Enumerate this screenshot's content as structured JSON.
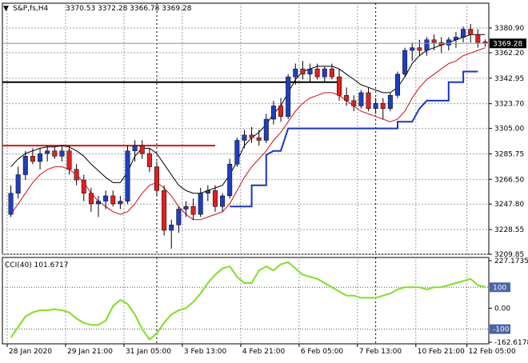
{
  "header": {
    "symbol": "S&P,fs,H4",
    "ohlc": "3370.53 3372.28 3366.78 3369.28"
  },
  "colors": {
    "bull_body": "#1f3fbf",
    "bear_body": "#e02020",
    "wick": "#000000",
    "upper_band": "#000000",
    "lower_band": "#cc1111",
    "trail_stop": "#1a33cc",
    "resistance_red": "#e01010",
    "cci_line": "#80e020",
    "grid": "#a0a0a0",
    "price_box_bg": "#000000",
    "price_box_fg": "#ffffff"
  },
  "chart_data": [
    {
      "type": "candlestick",
      "name": "price",
      "ylim": [
        3209.85,
        3390
      ],
      "y_ticks": [
        {
          "v": 3380.9,
          "label": "3380.90"
        },
        {
          "v": 3362.2,
          "label": "3362.20"
        },
        {
          "v": 3342.95,
          "label": "3342.95"
        },
        {
          "v": 3323.7,
          "label": "3323.70"
        },
        {
          "v": 3305.0,
          "label": "3305.00"
        },
        {
          "v": 3285.75,
          "label": "3285.75"
        },
        {
          "v": 3266.5,
          "label": "3266.50"
        },
        {
          "v": 3247.8,
          "label": "3247.80"
        },
        {
          "v": 3228.55,
          "label": "3228.55"
        },
        {
          "v": 3209.85,
          "label": "3209.85"
        }
      ],
      "current_price": {
        "v": 3369.28,
        "label": "3369.28"
      },
      "candles": [
        [
          3240,
          3262,
          3238,
          3256
        ],
        [
          3256,
          3276,
          3252,
          3270
        ],
        [
          3270,
          3288,
          3266,
          3284
        ],
        [
          3284,
          3290,
          3278,
          3280
        ],
        [
          3280,
          3290,
          3274,
          3286
        ],
        [
          3286,
          3292,
          3280,
          3288
        ],
        [
          3288,
          3291,
          3282,
          3284
        ],
        [
          3284,
          3292,
          3280,
          3288
        ],
        [
          3288,
          3292,
          3270,
          3274
        ],
        [
          3274,
          3278,
          3262,
          3266
        ],
        [
          3266,
          3270,
          3250,
          3256
        ],
        [
          3256,
          3260,
          3242,
          3248
        ],
        [
          3248,
          3254,
          3238,
          3250
        ],
        [
          3250,
          3258,
          3244,
          3254
        ],
        [
          3254,
          3258,
          3246,
          3248
        ],
        [
          3248,
          3254,
          3244,
          3250
        ],
        [
          3250,
          3292,
          3248,
          3288
        ],
        [
          3288,
          3296,
          3280,
          3292
        ],
        [
          3292,
          3296,
          3282,
          3286
        ],
        [
          3286,
          3290,
          3272,
          3276
        ],
        [
          3276,
          3280,
          3254,
          3258
        ],
        [
          3258,
          3262,
          3224,
          3228
        ],
        [
          3228,
          3236,
          3214,
          3232
        ],
        [
          3232,
          3246,
          3226,
          3244
        ],
        [
          3244,
          3250,
          3238,
          3246
        ],
        [
          3246,
          3252,
          3236,
          3240
        ],
        [
          3240,
          3260,
          3238,
          3256
        ],
        [
          3256,
          3262,
          3250,
          3258
        ],
        [
          3258,
          3262,
          3242,
          3246
        ],
        [
          3246,
          3256,
          3242,
          3254
        ],
        [
          3254,
          3282,
          3252,
          3278
        ],
        [
          3278,
          3298,
          3276,
          3296
        ],
        [
          3296,
          3304,
          3290,
          3300
        ],
        [
          3300,
          3306,
          3294,
          3298
        ],
        [
          3298,
          3304,
          3292,
          3296
        ],
        [
          3296,
          3316,
          3294,
          3312
        ],
        [
          3312,
          3326,
          3308,
          3322
        ],
        [
          3322,
          3328,
          3310,
          3314
        ],
        [
          3314,
          3346,
          3312,
          3344
        ],
        [
          3344,
          3354,
          3338,
          3350
        ],
        [
          3350,
          3356,
          3342,
          3346
        ],
        [
          3346,
          3354,
          3340,
          3350
        ],
        [
          3350,
          3354,
          3342,
          3344
        ],
        [
          3344,
          3352,
          3340,
          3350
        ],
        [
          3350,
          3354,
          3342,
          3344
        ],
        [
          3344,
          3350,
          3326,
          3330
        ],
        [
          3330,
          3336,
          3322,
          3326
        ],
        [
          3326,
          3330,
          3318,
          3322
        ],
        [
          3322,
          3334,
          3320,
          3332
        ],
        [
          3332,
          3336,
          3318,
          3320
        ],
        [
          3320,
          3328,
          3316,
          3324
        ],
        [
          3324,
          3328,
          3312,
          3320
        ],
        [
          3320,
          3332,
          3318,
          3330
        ],
        [
          3330,
          3348,
          3328,
          3346
        ],
        [
          3346,
          3366,
          3344,
          3364
        ],
        [
          3364,
          3370,
          3356,
          3366
        ],
        [
          3366,
          3372,
          3360,
          3364
        ],
        [
          3364,
          3374,
          3360,
          3372
        ],
        [
          3372,
          3376,
          3364,
          3370
        ],
        [
          3370,
          3374,
          3362,
          3368
        ],
        [
          3368,
          3374,
          3364,
          3372
        ],
        [
          3372,
          3378,
          3366,
          3374
        ],
        [
          3374,
          3382,
          3370,
          3380
        ],
        [
          3380,
          3384,
          3370,
          3376
        ],
        [
          3376,
          3380,
          3366,
          3370
        ],
        [
          3370.53,
          3372.28,
          3366.78,
          3369.28
        ]
      ],
      "upper_band": [
        3276,
        3282,
        3286,
        3288,
        3290,
        3291,
        3291,
        3292,
        3291,
        3288,
        3284,
        3278,
        3273,
        3268,
        3264,
        3264,
        3272,
        3284,
        3290,
        3290,
        3286,
        3278,
        3270,
        3262,
        3258,
        3256,
        3256,
        3258,
        3260,
        3262,
        3270,
        3280,
        3292,
        3298,
        3302,
        3308,
        3316,
        3322,
        3332,
        3342,
        3348,
        3350,
        3352,
        3352,
        3352,
        3350,
        3346,
        3342,
        3338,
        3336,
        3334,
        3332,
        3332,
        3336,
        3344,
        3354,
        3360,
        3364,
        3366,
        3368,
        3370,
        3372,
        3374,
        3376,
        3376,
        3376
      ],
      "lower_band": [
        3240,
        3248,
        3256,
        3264,
        3270,
        3274,
        3276,
        3276,
        3274,
        3270,
        3264,
        3256,
        3250,
        3246,
        3242,
        3240,
        3242,
        3248,
        3256,
        3262,
        3264,
        3260,
        3254,
        3246,
        3240,
        3236,
        3236,
        3238,
        3240,
        3242,
        3248,
        3258,
        3268,
        3276,
        3282,
        3288,
        3296,
        3302,
        3310,
        3318,
        3324,
        3328,
        3330,
        3332,
        3332,
        3330,
        3326,
        3322,
        3318,
        3316,
        3314,
        3312,
        3310,
        3312,
        3318,
        3328,
        3336,
        3342,
        3346,
        3350,
        3354,
        3356,
        3360,
        3362,
        3364,
        3366
      ],
      "trail_stop": [
        [
          30,
          3246
        ],
        [
          31,
          3246
        ],
        [
          32,
          3246
        ],
        [
          33,
          3246
        ],
        [
          33,
          3262
        ],
        [
          34,
          3262
        ],
        [
          35,
          3262
        ],
        [
          35,
          3285
        ],
        [
          36,
          3288
        ],
        [
          37,
          3288
        ],
        [
          38,
          3305
        ],
        [
          39,
          3305
        ],
        [
          52,
          3305
        ],
        [
          53,
          3305
        ],
        [
          53,
          3310
        ],
        [
          55,
          3310
        ],
        [
          56,
          3320
        ],
        [
          57,
          3326
        ],
        [
          60,
          3326
        ],
        [
          60,
          3340
        ],
        [
          61,
          3340
        ],
        [
          62,
          3340
        ],
        [
          62,
          3348
        ],
        [
          64,
          3348
        ]
      ],
      "resistance_lines": [
        {
          "level": 3292,
          "from": 0,
          "to": 28,
          "color": "red"
        },
        {
          "level": 3340,
          "from": 0,
          "to": 45,
          "color": "black"
        }
      ]
    },
    {
      "type": "line",
      "name": "cci",
      "label": "CCI(40) 101.6717",
      "ylim": [
        -162.6178,
        227.1735
      ],
      "y_ticks": [
        {
          "v": 227.1735,
          "label": "227.1735"
        },
        {
          "v": 100,
          "label": "100"
        },
        {
          "v": 0,
          "label": "0.00"
        },
        {
          "v": -100,
          "label": "-100"
        },
        {
          "v": -162.6178,
          "label": "-162.6178"
        }
      ],
      "values": [
        -140,
        -90,
        -40,
        -20,
        -10,
        -10,
        -5,
        -10,
        -20,
        -50,
        -70,
        -80,
        -80,
        -60,
        10,
        40,
        20,
        -30,
        -100,
        -150,
        -120,
        -70,
        -30,
        -10,
        0,
        30,
        70,
        120,
        160,
        190,
        200,
        150,
        120,
        120,
        180,
        200,
        180,
        210,
        220,
        190,
        160,
        150,
        140,
        120,
        100,
        80,
        60,
        60,
        50,
        50,
        50,
        60,
        70,
        90,
        100,
        100,
        100,
        90,
        100,
        100,
        110,
        120,
        130,
        140,
        110,
        101.6717
      ]
    }
  ],
  "x_axis": {
    "labels": [
      {
        "i": 0,
        "label": "28 Jan 2020"
      },
      {
        "i": 8,
        "label": "29 Jan 21:00"
      },
      {
        "i": 16,
        "label": "31 Jan 05:00"
      },
      {
        "i": 24,
        "label": "3 Feb 13:00"
      },
      {
        "i": 32,
        "label": "4 Feb 21:00"
      },
      {
        "i": 40,
        "label": "6 Feb 05:00"
      },
      {
        "i": 48,
        "label": "7 Feb 13:00"
      },
      {
        "i": 56,
        "label": "10 Feb 21:00"
      },
      {
        "i": 63,
        "label": "12 Feb 05:00"
      }
    ],
    "period_separators": [
      20,
      50
    ]
  }
}
